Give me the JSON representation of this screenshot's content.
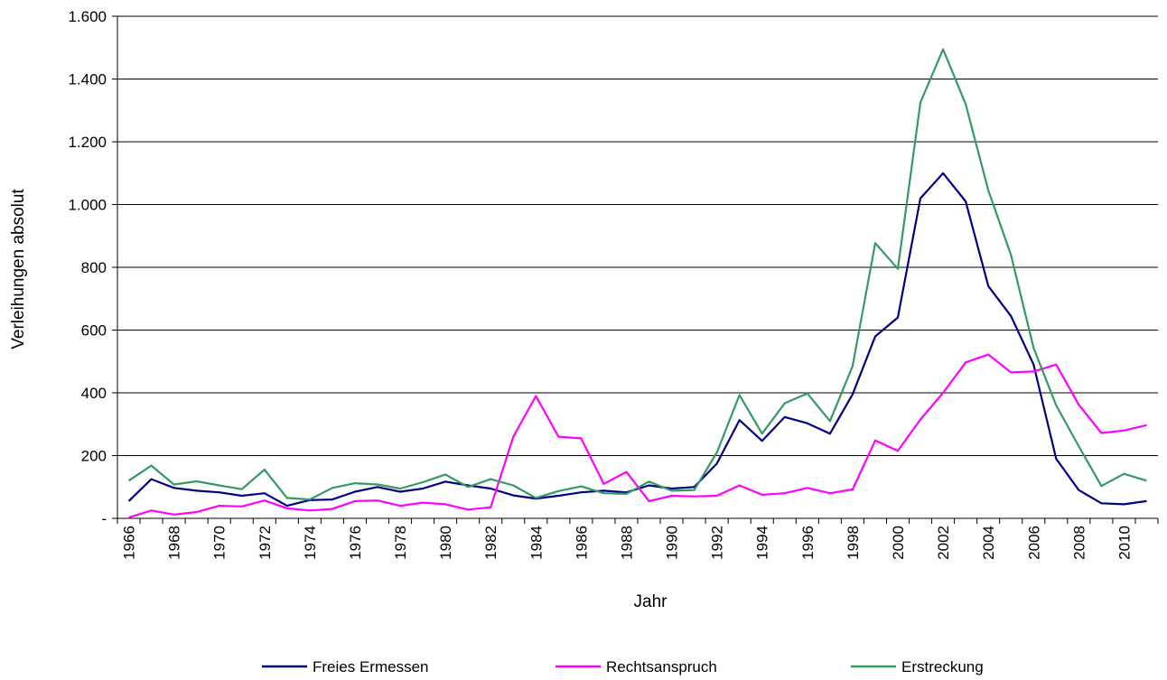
{
  "chart_data": {
    "type": "line",
    "title": "",
    "xlabel": "Jahr",
    "ylabel": "Verleihungen absolut",
    "ylim": [
      0,
      1600
    ],
    "yticks": [
      {
        "value": 0,
        "label": "-"
      },
      {
        "value": 200,
        "label": "200"
      },
      {
        "value": 400,
        "label": "400"
      },
      {
        "value": 600,
        "label": "600"
      },
      {
        "value": 800,
        "label": "800"
      },
      {
        "value": 1000,
        "label": "1.000"
      },
      {
        "value": 1200,
        "label": "1.200"
      },
      {
        "value": 1400,
        "label": "1.400"
      },
      {
        "value": 1600,
        "label": "1.600"
      }
    ],
    "x": [
      1966,
      1967,
      1968,
      1969,
      1970,
      1971,
      1972,
      1973,
      1974,
      1975,
      1976,
      1977,
      1978,
      1979,
      1980,
      1981,
      1982,
      1983,
      1984,
      1985,
      1986,
      1987,
      1988,
      1989,
      1990,
      1991,
      1992,
      1993,
      1994,
      1995,
      1996,
      1997,
      1998,
      1999,
      2000,
      2001,
      2002,
      2003,
      2004,
      2005,
      2006,
      2007,
      2008,
      2009,
      2010,
      2011
    ],
    "xtick_labels": [
      "1966",
      "1968",
      "1970",
      "1972",
      "1974",
      "1976",
      "1978",
      "1980",
      "1982",
      "1984",
      "1986",
      "1988",
      "1990",
      "1992",
      "1994",
      "1996",
      "1998",
      "2000",
      "2002",
      "2004",
      "2006",
      "2008",
      "2010"
    ],
    "grid": true,
    "legend_position": "bottom",
    "series": [
      {
        "name": "Freies Ermessen",
        "color": "#000080",
        "values": [
          55,
          125,
          97,
          88,
          83,
          72,
          80,
          40,
          58,
          60,
          85,
          100,
          85,
          95,
          117,
          105,
          95,
          73,
          63,
          72,
          83,
          88,
          83,
          105,
          95,
          100,
          175,
          313,
          247,
          323,
          303,
          270,
          395,
          580,
          640,
          1020,
          1100,
          1010,
          740,
          645,
          490,
          190,
          90,
          48,
          45,
          55
        ]
      },
      {
        "name": "Rechtsanspruch",
        "color": "#FF00FF",
        "values": [
          3,
          25,
          12,
          20,
          40,
          38,
          57,
          32,
          25,
          30,
          55,
          57,
          40,
          50,
          45,
          28,
          35,
          260,
          390,
          260,
          255,
          110,
          148,
          55,
          72,
          70,
          72,
          105,
          75,
          80,
          97,
          80,
          92,
          248,
          215,
          315,
          400,
          497,
          522,
          465,
          468,
          490,
          362,
          272,
          280,
          297
        ]
      },
      {
        "name": "Erstreckung",
        "color": "#339966",
        "values": [
          120,
          168,
          108,
          118,
          105,
          93,
          155,
          65,
          60,
          97,
          112,
          108,
          95,
          115,
          140,
          100,
          125,
          105,
          65,
          87,
          102,
          80,
          78,
          117,
          88,
          90,
          210,
          393,
          270,
          367,
          398,
          310,
          485,
          877,
          795,
          1325,
          1495,
          1320,
          1045,
          840,
          543,
          360,
          230,
          103,
          142,
          120
        ]
      }
    ]
  }
}
